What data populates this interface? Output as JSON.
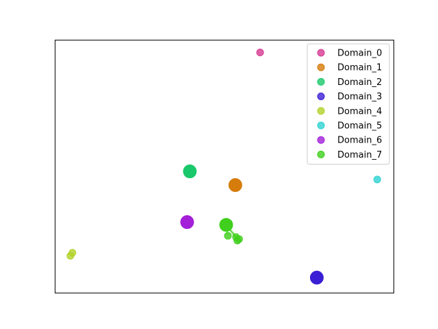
{
  "chart_data": {
    "type": "scatter",
    "title": "",
    "xlabel": "",
    "ylabel": "",
    "xlim": [
      0,
      100
    ],
    "ylim": [
      0,
      100
    ],
    "grid": false,
    "axis_ticks": false,
    "legend_position": "top-right",
    "series": [
      {
        "name": "Domain_0",
        "color": "#d63a92",
        "points": [
          {
            "x": 60.5,
            "y": 95.0,
            "big": false
          }
        ]
      },
      {
        "name": "Domain_1",
        "color": "#d57c0a",
        "points": [
          {
            "x": 53.2,
            "y": 42.7,
            "big": true
          }
        ]
      },
      {
        "name": "Domain_2",
        "color": "#19c86a",
        "points": [
          {
            "x": 39.8,
            "y": 48.1,
            "big": true
          }
        ]
      },
      {
        "name": "Domain_3",
        "color": "#3a1fd4",
        "points": [
          {
            "x": 77.2,
            "y": 6.2,
            "big": true
          },
          {
            "x": 77.6,
            "y": 6.0,
            "big": false
          }
        ]
      },
      {
        "name": "Domain_4",
        "color": "#b2d22a",
        "points": [
          {
            "x": 4.6,
            "y": 14.8,
            "big": false
          },
          {
            "x": 5.2,
            "y": 16.0,
            "big": false
          }
        ]
      },
      {
        "name": "Domain_5",
        "color": "#2fd2d2",
        "points": [
          {
            "x": 95.0,
            "y": 44.9,
            "big": false
          }
        ]
      },
      {
        "name": "Domain_6",
        "color": "#a31fd8",
        "points": [
          {
            "x": 39.0,
            "y": 28.1,
            "big": true
          }
        ]
      },
      {
        "name": "Domain_7",
        "color": "#3fcf1c",
        "points": [
          {
            "x": 50.5,
            "y": 27.0,
            "big": true
          },
          {
            "x": 51.0,
            "y": 22.7,
            "big": false
          },
          {
            "x": 53.4,
            "y": 22.2,
            "big": false
          },
          {
            "x": 54.3,
            "y": 21.4,
            "big": false
          },
          {
            "x": 53.8,
            "y": 20.8,
            "big": false
          }
        ]
      }
    ]
  }
}
